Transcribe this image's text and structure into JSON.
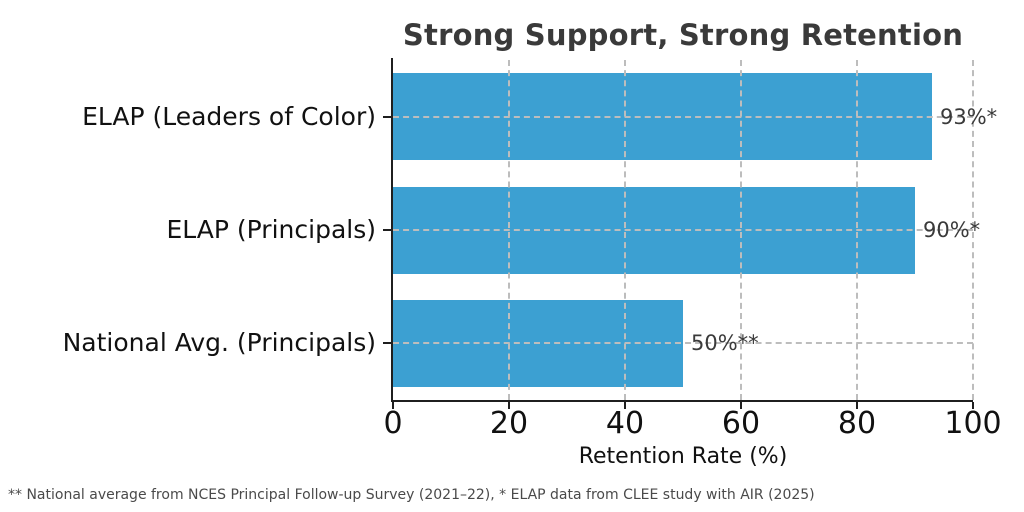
{
  "chart_data": {
    "type": "bar",
    "orientation": "horizontal",
    "title": "Strong Support, Strong Retention",
    "categories": [
      "ELAP (Leaders of Color)",
      "ELAP (Principals)",
      "National Avg. (Principals)"
    ],
    "values": [
      93,
      90,
      50
    ],
    "value_labels": [
      "93%*",
      "90%*",
      "50%**"
    ],
    "xlabel": "Retention Rate (%)",
    "ylabel": "",
    "xlim": [
      0,
      100
    ],
    "xticks": [
      0,
      20,
      40,
      60,
      80,
      100
    ],
    "xtick_labels": [
      "0",
      "20",
      "40",
      "60",
      "80",
      "100"
    ],
    "grid": "dashed, over bars",
    "legend": "none",
    "bar_color": "#3CA0D2",
    "grid_color": "#bdbdbd",
    "axis_color": "#1f1f1f"
  },
  "footnote": "** National average from NCES Principal Follow-up Survey (2021–22), * ELAP data from CLEE study with AIR (2025)"
}
